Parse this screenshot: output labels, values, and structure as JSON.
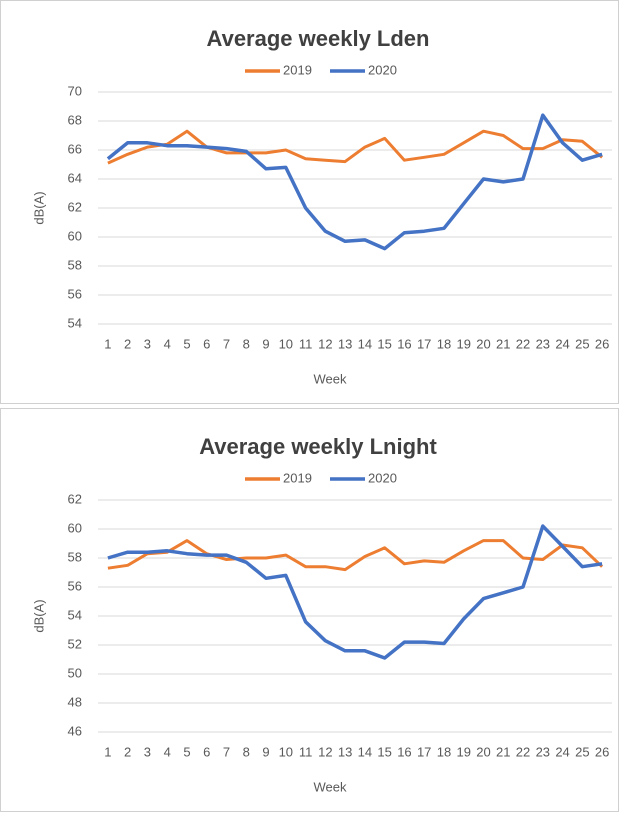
{
  "chart_data": [
    {
      "type": "line",
      "title": "Average weekly Lden",
      "y_label": "dB(A)",
      "x_label": "Week",
      "categories": [
        "1",
        "2",
        "3",
        "4",
        "5",
        "6",
        "7",
        "8",
        "9",
        "10",
        "11",
        "12",
        "13",
        "14",
        "15",
        "16",
        "17",
        "18",
        "19",
        "20",
        "21",
        "22",
        "23",
        "24",
        "25",
        "26"
      ],
      "series": [
        {
          "name": "2019",
          "color": "#ED7D31",
          "values": [
            65.1,
            65.7,
            66.2,
            66.4,
            67.3,
            66.2,
            65.8,
            65.8,
            65.8,
            66.0,
            65.4,
            65.3,
            65.2,
            66.2,
            66.8,
            65.3,
            65.5,
            65.7,
            66.5,
            67.3,
            67.0,
            66.1,
            66.1,
            66.7,
            66.6,
            65.5
          ]
        },
        {
          "name": "2020",
          "color": "#4472C4",
          "values": [
            65.4,
            66.5,
            66.5,
            66.3,
            66.3,
            66.2,
            66.1,
            65.9,
            64.7,
            64.8,
            62.0,
            60.4,
            59.7,
            59.8,
            59.2,
            60.3,
            60.4,
            60.6,
            62.3,
            64.0,
            63.8,
            64.0,
            68.4,
            66.5,
            65.3,
            65.7
          ]
        }
      ],
      "ylim": [
        54,
        70
      ],
      "yticks": [
        54,
        56,
        58,
        60,
        62,
        64,
        66,
        68,
        70
      ],
      "grid": true
    },
    {
      "type": "line",
      "title": "Average weekly Lnight",
      "y_label": "dB(A)",
      "x_label": "Week",
      "categories": [
        "1",
        "2",
        "3",
        "4",
        "5",
        "6",
        "7",
        "8",
        "9",
        "10",
        "11",
        "12",
        "13",
        "14",
        "15",
        "16",
        "17",
        "18",
        "19",
        "20",
        "21",
        "22",
        "23",
        "24",
        "25",
        "26"
      ],
      "series": [
        {
          "name": "2019",
          "color": "#ED7D31",
          "values": [
            57.3,
            57.5,
            58.3,
            58.4,
            59.2,
            58.3,
            57.9,
            58.0,
            58.0,
            58.2,
            57.4,
            57.4,
            57.2,
            58.1,
            58.7,
            57.6,
            57.8,
            57.7,
            58.5,
            59.2,
            59.2,
            58.0,
            57.9,
            58.9,
            58.7,
            57.4
          ]
        },
        {
          "name": "2020",
          "color": "#4472C4",
          "values": [
            58.0,
            58.4,
            58.4,
            58.5,
            58.3,
            58.2,
            58.2,
            57.7,
            56.6,
            56.8,
            53.6,
            52.3,
            51.6,
            51.6,
            51.1,
            52.2,
            52.2,
            52.1,
            53.8,
            55.2,
            55.6,
            56.0,
            60.2,
            58.8,
            57.4,
            57.6
          ]
        }
      ],
      "ylim": [
        46,
        62
      ],
      "yticks": [
        46,
        48,
        50,
        52,
        54,
        56,
        58,
        60,
        62
      ],
      "grid": true
    }
  ]
}
